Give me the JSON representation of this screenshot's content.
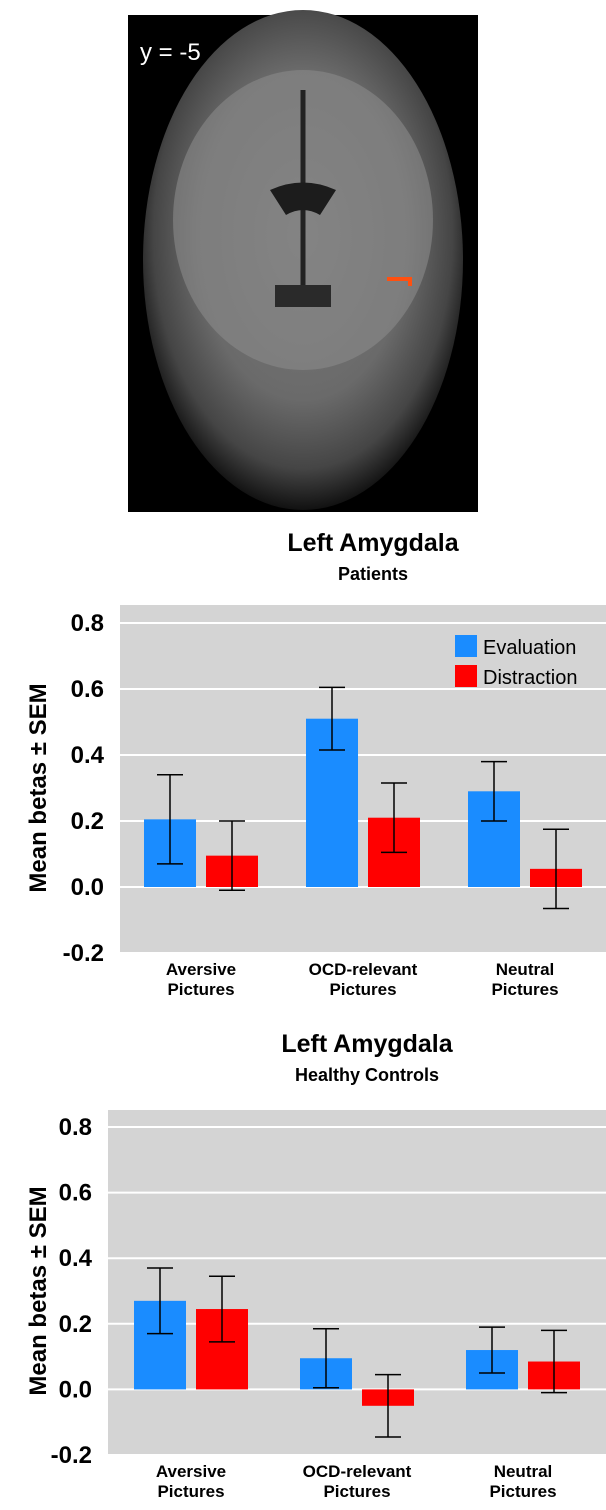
{
  "image_label": "y = -5",
  "chart_data": [
    {
      "type": "bar",
      "title": "Left Amygdala",
      "subtitle": "Patients",
      "ylabel": "Mean betas ± SEM",
      "categories": [
        "Aversive Pictures",
        "OCD-relevant Pictures",
        "Neutral Pictures"
      ],
      "series": [
        {
          "name": "Evaluation",
          "color": "#1a8cff",
          "values": [
            0.205,
            0.51,
            0.29
          ],
          "errors": [
            0.135,
            0.095,
            0.09
          ]
        },
        {
          "name": "Distraction",
          "color": "#ff0000",
          "values": [
            0.095,
            0.21,
            0.055
          ],
          "errors": [
            0.105,
            0.105,
            0.12
          ]
        }
      ],
      "ylim": [
        -0.2,
        0.8
      ],
      "yticks": [
        -0.2,
        {
          "value": 0,
          "label": "0.0"
        },
        0.2,
        0.4,
        0.6,
        0.8
      ],
      "grid": true,
      "legend": "top-right"
    },
    {
      "type": "bar",
      "title": "Left Amygdala",
      "subtitle": "Healthy Controls",
      "ylabel": "Mean betas ± SEM",
      "categories": [
        "Aversive Pictures",
        "OCD-relevant Pictures",
        "Neutral Pictures"
      ],
      "series": [
        {
          "name": "Evaluation",
          "color": "#1a8cff",
          "values": [
            0.27,
            0.095,
            0.12
          ],
          "errors": [
            0.1,
            0.09,
            0.07
          ]
        },
        {
          "name": "Distraction",
          "color": "#ff0000",
          "values": [
            0.245,
            -0.05,
            0.085
          ],
          "errors": [
            0.1,
            0.095,
            0.095
          ]
        }
      ],
      "ylim": [
        -0.2,
        0.8
      ],
      "yticks": [
        -0.2,
        {
          "value": 0,
          "label": "0.0"
        },
        0.2,
        0.4,
        0.6,
        0.8
      ],
      "grid": true
    }
  ]
}
